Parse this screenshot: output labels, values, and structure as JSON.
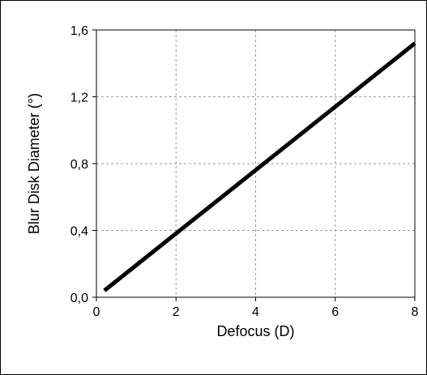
{
  "chart_data": {
    "type": "line",
    "xlabel": "Defocus (D)",
    "ylabel": "Blur Disk Diameter (°)",
    "xlim": [
      0,
      8
    ],
    "ylim": [
      0,
      1.6
    ],
    "x_ticks": [
      0,
      2,
      4,
      6,
      8
    ],
    "y_ticks": [
      0,
      0.4,
      0.8,
      1.2,
      1.6
    ],
    "x_tick_labels": [
      "0",
      "2",
      "4",
      "6",
      "8"
    ],
    "y_tick_labels": [
      "0,0",
      "0,4",
      "0,8",
      "1,2",
      "1,6"
    ],
    "grid": true,
    "series": [
      {
        "color": "#000000",
        "x": [
          0.2,
          8.0
        ],
        "y": [
          0.04,
          1.52
        ]
      }
    ]
  }
}
